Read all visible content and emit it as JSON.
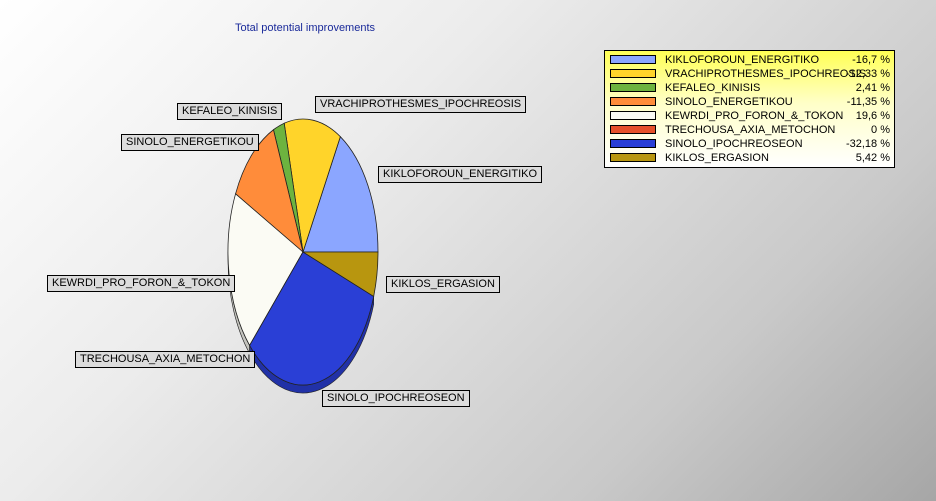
{
  "chart_data": {
    "type": "pie",
    "title": "Total potential improvements",
    "legend_placement": "top-right",
    "slices": [
      {
        "label": "KIKLOFOROUN_ENERGITIKO",
        "value_text": "-16,7 %",
        "value": 16.7,
        "color": "#8ba6ff"
      },
      {
        "label": "VRACHIPROTHESMES_IPOCHREOSIS",
        "value_text": "-12,33 %",
        "value": 12.33,
        "color": "#ffd42a"
      },
      {
        "label": "KEFALEO_KINISIS",
        "value_text": "2,41 %",
        "value": 2.41,
        "color": "#6db33f"
      },
      {
        "label": "SINOLO_ENERGETIKOU",
        "value_text": "-11,35 %",
        "value": 11.35,
        "color": "#ff8c3a"
      },
      {
        "label": "KEWRDI_PRO_FORON_&_TOKON",
        "value_text": "19,6 %",
        "value": 19.6,
        "color": "#fbfbf4"
      },
      {
        "label": "TRECHOUSA_AXIA_METOCHON",
        "value_text": "0 %",
        "value": 0,
        "color": "#e6502a"
      },
      {
        "label": "SINOLO_IPOCHREOSEON",
        "value_text": "-32,18 %",
        "value": 32.18,
        "color": "#2a3fd6"
      },
      {
        "label": "KIKLOS_ERGASION",
        "value_text": "5,42 %",
        "value": 5.42,
        "color": "#b8960f"
      }
    ]
  }
}
